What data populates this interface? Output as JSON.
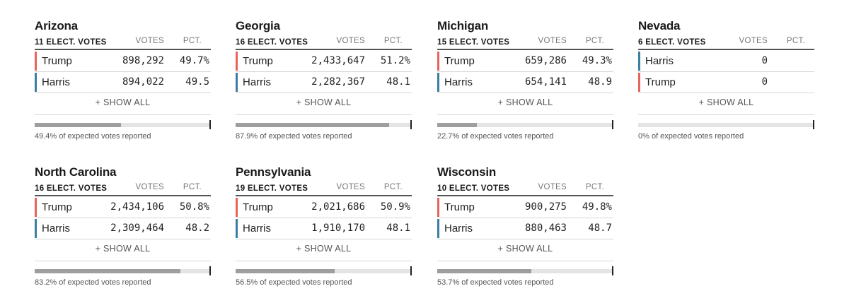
{
  "labels": {
    "votes_header": "VOTES",
    "pct_header": "PCT.",
    "show_all": "+ SHOW ALL"
  },
  "colors": {
    "republican": "#e8635a",
    "democrat": "#3a7ea1",
    "progress_fill": "#9e9e9e",
    "progress_track": "#e4e4e4"
  },
  "states": [
    {
      "name": "Arizona",
      "elect_votes": "11 ELECT. VOTES",
      "candidates": [
        {
          "name": "Trump",
          "votes": "898,292",
          "pct": "49.7%",
          "party": "republican"
        },
        {
          "name": "Harris",
          "votes": "894,022",
          "pct": "49.5",
          "party": "democrat"
        }
      ],
      "reported_pct": 49.4,
      "reported_text": "49.4% of expected votes reported"
    },
    {
      "name": "Georgia",
      "elect_votes": "16 ELECT. VOTES",
      "candidates": [
        {
          "name": "Trump",
          "votes": "2,433,647",
          "pct": "51.2%",
          "party": "republican"
        },
        {
          "name": "Harris",
          "votes": "2,282,367",
          "pct": "48.1",
          "party": "democrat"
        }
      ],
      "reported_pct": 87.9,
      "reported_text": "87.9% of expected votes reported"
    },
    {
      "name": "Michigan",
      "elect_votes": "15 ELECT. VOTES",
      "candidates": [
        {
          "name": "Trump",
          "votes": "659,286",
          "pct": "49.3%",
          "party": "republican"
        },
        {
          "name": "Harris",
          "votes": "654,141",
          "pct": "48.9",
          "party": "democrat"
        }
      ],
      "reported_pct": 22.7,
      "reported_text": "22.7% of expected votes reported"
    },
    {
      "name": "Nevada",
      "elect_votes": "6 ELECT. VOTES",
      "candidates": [
        {
          "name": "Harris",
          "votes": "0",
          "pct": "",
          "party": "democrat"
        },
        {
          "name": "Trump",
          "votes": "0",
          "pct": "",
          "party": "republican"
        }
      ],
      "reported_pct": 0,
      "reported_text": "0% of expected votes reported"
    },
    {
      "name": "North Carolina",
      "elect_votes": "16 ELECT. VOTES",
      "candidates": [
        {
          "name": "Trump",
          "votes": "2,434,106",
          "pct": "50.8%",
          "party": "republican"
        },
        {
          "name": "Harris",
          "votes": "2,309,464",
          "pct": "48.2",
          "party": "democrat"
        }
      ],
      "reported_pct": 83.2,
      "reported_text": "83.2% of expected votes reported"
    },
    {
      "name": "Pennsylvania",
      "elect_votes": "19 ELECT. VOTES",
      "candidates": [
        {
          "name": "Trump",
          "votes": "2,021,686",
          "pct": "50.9%",
          "party": "republican"
        },
        {
          "name": "Harris",
          "votes": "1,910,170",
          "pct": "48.1",
          "party": "democrat"
        }
      ],
      "reported_pct": 56.5,
      "reported_text": "56.5% of expected votes reported"
    },
    {
      "name": "Wisconsin",
      "elect_votes": "10 ELECT. VOTES",
      "candidates": [
        {
          "name": "Trump",
          "votes": "900,275",
          "pct": "49.8%",
          "party": "republican"
        },
        {
          "name": "Harris",
          "votes": "880,463",
          "pct": "48.7",
          "party": "democrat"
        }
      ],
      "reported_pct": 53.7,
      "reported_text": "53.7% of expected votes reported"
    }
  ]
}
